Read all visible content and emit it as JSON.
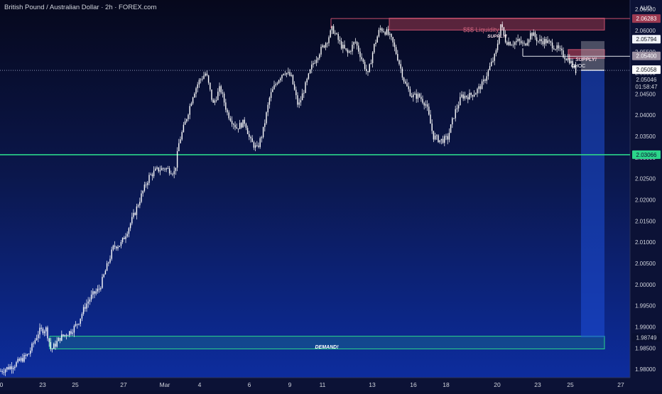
{
  "header": {
    "title": "British Pound / Australian Dollar · 2h · FOREX.com"
  },
  "axis": {
    "currency": "AUD",
    "countdown": "01:58:47"
  },
  "chart_data": {
    "type": "candlestick",
    "title": "British Pound / Australian Dollar · 2h · FOREX.com",
    "y_unit": "AUD",
    "ylim": [
      1.978,
      2.0672
    ],
    "y_ticks": [
      1.98,
      1.985,
      1.99,
      1.995,
      2.0,
      2.005,
      2.01,
      2.015,
      2.02,
      2.025,
      2.03,
      2.035,
      2.04,
      2.045,
      2.05,
      2.055,
      2.06,
      2.065
    ],
    "y_tick_labels": [
      "1.98000",
      "1.98500",
      "1.99000",
      "1.99500",
      "2.00000",
      "2.00500",
      "2.01000",
      "2.01500",
      "2.02000",
      "2.02500",
      "2.03000",
      "2.03500",
      "2.04000",
      "2.04500",
      "2.05000",
      "2.05500",
      "2.06000",
      "2.06500"
    ],
    "x_tick_labels": [
      "0",
      "23",
      "25",
      "27",
      "Mar",
      "4",
      "6",
      "9",
      "11",
      "13",
      "16",
      "18",
      "20",
      "23",
      "25",
      "27"
    ],
    "price_path": [
      [
        0,
        1.9795
      ],
      [
        20,
        1.981
      ],
      [
        40,
        1.9835
      ],
      [
        55,
        1.989
      ],
      [
        65,
        1.9895
      ],
      [
        72,
        1.9845
      ],
      [
        85,
        1.9875
      ],
      [
        100,
        1.989
      ],
      [
        110,
        1.991
      ],
      [
        120,
        1.995
      ],
      [
        130,
        1.9975
      ],
      [
        140,
        1.999
      ],
      [
        150,
        2.004
      ],
      [
        160,
        2.009
      ],
      [
        170,
        2.0095
      ],
      [
        180,
        2.013
      ],
      [
        190,
        2.017
      ],
      [
        200,
        2.0215
      ],
      [
        210,
        2.0255
      ],
      [
        220,
        2.027
      ],
      [
        232,
        2.0275
      ],
      [
        246,
        2.0265
      ],
      [
        252,
        2.0335
      ],
      [
        262,
        2.039
      ],
      [
        272,
        2.045
      ],
      [
        280,
        2.048
      ],
      [
        290,
        2.05
      ],
      [
        300,
        2.0425
      ],
      [
        310,
        2.0465
      ],
      [
        320,
        2.0405
      ],
      [
        333,
        2.037
      ],
      [
        345,
        2.0385
      ],
      [
        352,
        2.034
      ],
      [
        362,
        2.032
      ],
      [
        370,
        2.036
      ],
      [
        380,
        2.0445
      ],
      [
        390,
        2.048
      ],
      [
        400,
        2.0505
      ],
      [
        410,
        2.049
      ],
      [
        420,
        2.042
      ],
      [
        430,
        2.047
      ],
      [
        440,
        2.052
      ],
      [
        450,
        2.055
      ],
      [
        460,
        2.0575
      ],
      [
        468,
        2.0605
      ],
      [
        480,
        2.0565
      ],
      [
        490,
        2.0545
      ],
      [
        500,
        2.0575
      ],
      [
        510,
        2.053
      ],
      [
        518,
        2.0495
      ],
      [
        526,
        2.056
      ],
      [
        535,
        2.0605
      ],
      [
        545,
        2.0595
      ],
      [
        552,
        2.0575
      ],
      [
        560,
        2.0535
      ],
      [
        570,
        2.0475
      ],
      [
        580,
        2.0445
      ],
      [
        590,
        2.0445
      ],
      [
        600,
        2.0425
      ],
      [
        610,
        2.035
      ],
      [
        620,
        2.034
      ],
      [
        630,
        2.0345
      ],
      [
        640,
        2.0405
      ],
      [
        650,
        2.0445
      ],
      [
        660,
        2.0445
      ],
      [
        670,
        2.0455
      ],
      [
        680,
        2.0475
      ],
      [
        690,
        2.0515
      ],
      [
        698,
        2.0545
      ],
      [
        705,
        2.0615
      ],
      [
        712,
        2.0575
      ],
      [
        720,
        2.057
      ],
      [
        730,
        2.0575
      ],
      [
        738,
        2.0565
      ],
      [
        748,
        2.0595
      ],
      [
        758,
        2.0575
      ],
      [
        768,
        2.0575
      ],
      [
        778,
        2.0565
      ],
      [
        786,
        2.0555
      ],
      [
        794,
        2.054
      ],
      [
        802,
        2.053
      ],
      [
        810,
        2.0505
      ],
      [
        813,
        2.0504
      ]
    ],
    "levels": [
      {
        "label": "2.06283",
        "value": 2.06283,
        "color": "#9c3a52"
      },
      {
        "label": "2.05794",
        "value": 2.05794,
        "color": "#f0f3fa"
      },
      {
        "label": "2.05400",
        "value": 2.054,
        "color": "#9a8fa0"
      },
      {
        "label": "2.05058",
        "value": 2.05058,
        "color": "#ffffff"
      },
      {
        "label": "2.05046",
        "value": 2.05046,
        "color": "#0a1030"
      },
      {
        "label": "2.03066",
        "value": 2.03066,
        "color": "#2bd58a"
      },
      {
        "label": "1.98749",
        "value": 1.98749,
        "color": "#0a1030"
      }
    ],
    "annotations": [
      {
        "text": "$$$ Liquidity",
        "color": "#c8607a"
      },
      {
        "text": "SUPPLY!",
        "color": "#f0d6de"
      },
      {
        "text": "SUPPLY!",
        "color": "#f0d6de"
      },
      {
        "text": "CHOC",
        "color": "#ffffff"
      },
      {
        "text": "DEMAND!",
        "color": "#ffffff"
      }
    ],
    "zones": [
      {
        "name": "supply-zone-top",
        "from": 2.0601,
        "to": 2.0629,
        "color": "#9c3a52"
      },
      {
        "name": "supply-zone-small",
        "from": 2.0534,
        "to": 2.0555,
        "color": "#9c3a52"
      },
      {
        "name": "demand-zone",
        "from": 1.9848,
        "to": 1.9878,
        "color": "#2bd58a"
      },
      {
        "name": "short-target-box",
        "from": 1.9875,
        "to": 2.0506,
        "color": "#1e4fd8"
      }
    ],
    "grid": false,
    "legend": "none"
  }
}
